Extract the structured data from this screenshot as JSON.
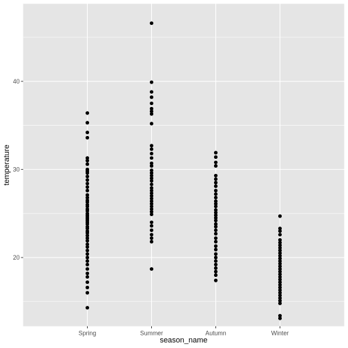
{
  "chart_data": {
    "type": "scatter",
    "title": "",
    "xlabel": "season_name",
    "ylabel": "temperature",
    "categories": [
      "Spring",
      "Summer",
      "Autumn",
      "Winter"
    ],
    "ylim": [
      12.2,
      48.8
    ],
    "yticks": [
      20,
      30,
      40
    ],
    "grid": true,
    "legend": "none",
    "colors": {
      "panel": "#e5e5e5",
      "grid_major": "#ffffff",
      "point": "#000000",
      "tick": "#4d4d4d"
    },
    "series": [
      {
        "category": "Spring",
        "values": [
          36.4,
          35.3,
          34.2,
          33.6,
          31.3,
          31.0,
          30.6,
          30.0,
          29.8,
          29.6,
          29.2,
          28.8,
          28.4,
          28.0,
          27.6,
          27.1,
          26.8,
          26.5,
          26.3,
          26.0,
          25.8,
          25.5,
          25.3,
          25.0,
          24.8,
          24.6,
          24.4,
          24.2,
          24.0,
          23.8,
          23.5,
          23.3,
          23.0,
          22.8,
          22.5,
          22.2,
          21.9,
          21.5,
          21.2,
          20.8,
          20.4,
          20.0,
          19.6,
          19.2,
          18.7,
          18.2,
          17.8,
          17.2,
          16.6,
          16.0,
          14.3
        ]
      },
      {
        "category": "Summer",
        "values": [
          46.6,
          39.9,
          38.8,
          38.2,
          37.5,
          36.9,
          36.6,
          36.3,
          35.2,
          32.7,
          32.3,
          31.8,
          31.3,
          30.7,
          30.4,
          29.9,
          29.6,
          29.3,
          29.0,
          28.7,
          28.3,
          27.9,
          27.6,
          27.3,
          27.0,
          26.7,
          26.4,
          26.1,
          25.8,
          25.5,
          25.2,
          24.9,
          24.0,
          23.6,
          23.1,
          22.6,
          22.2,
          21.8,
          18.7
        ]
      },
      {
        "category": "Autumn",
        "values": [
          31.9,
          31.4,
          30.8,
          30.4,
          29.3,
          28.9,
          28.5,
          28.1,
          27.6,
          27.2,
          26.8,
          26.4,
          26.1,
          25.8,
          25.4,
          25.1,
          24.8,
          24.5,
          24.2,
          23.8,
          23.5,
          23.1,
          22.7,
          22.2,
          21.8,
          21.3,
          20.9,
          20.4,
          20.0,
          19.6,
          19.2,
          18.8,
          18.4,
          18.0,
          17.4
        ]
      },
      {
        "category": "Winter",
        "values": [
          24.7,
          23.3,
          23.0,
          22.6,
          22.0,
          21.7,
          21.4,
          21.1,
          20.8,
          20.5,
          20.2,
          19.9,
          19.6,
          19.3,
          19.0,
          18.7,
          18.4,
          18.1,
          17.8,
          17.5,
          17.2,
          16.9,
          16.6,
          16.3,
          16.0,
          15.7,
          15.4,
          15.1,
          14.8,
          13.4,
          13.1
        ]
      }
    ]
  }
}
